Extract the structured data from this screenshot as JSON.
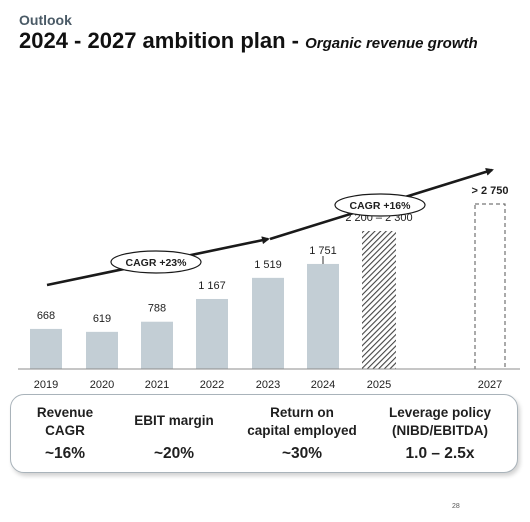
{
  "header": {
    "section": "Outlook",
    "title": "2024 - 2027 ambition plan",
    "subtitle_sep": " - ",
    "subtitle": "Organic revenue growth"
  },
  "chart_data": {
    "type": "bar",
    "categories": [
      "2019",
      "2020",
      "2021",
      "2022",
      "2023",
      "2024",
      "2025",
      "2027"
    ],
    "values": [
      668,
      619,
      788,
      1167,
      1519,
      1751,
      2300,
      2750
    ],
    "value_labels": [
      "668",
      "619",
      "788",
      "1 167",
      "1 519",
      "1 751",
      "2 200 – 2 300",
      "> 2 750"
    ],
    "range_2025": [
      2200,
      2300
    ],
    "target_2027_min": 2750,
    "bar_color": "#c3ced5",
    "forecast_style": "hatched",
    "target_style": "dashed",
    "ylim": [
      0,
      2900
    ],
    "grid": false,
    "annotations": [
      {
        "text": "CAGR +23%",
        "span": [
          "2019",
          "2023"
        ]
      },
      {
        "text": "CAGR +16%",
        "span": [
          "2023",
          "2027"
        ]
      }
    ]
  },
  "kpis": [
    {
      "label_lines": [
        "Revenue",
        "CAGR"
      ],
      "value": "~16%"
    },
    {
      "label_lines": [
        "EBIT margin"
      ],
      "value": "~20%"
    },
    {
      "label_lines": [
        "Return on",
        "capital employed"
      ],
      "value": "~30%"
    },
    {
      "label_lines": [
        "Leverage policy",
        "(NIBD/EBITDA)"
      ],
      "value": "1.0 – 2.5x"
    }
  ],
  "page": {
    "number": "28"
  }
}
